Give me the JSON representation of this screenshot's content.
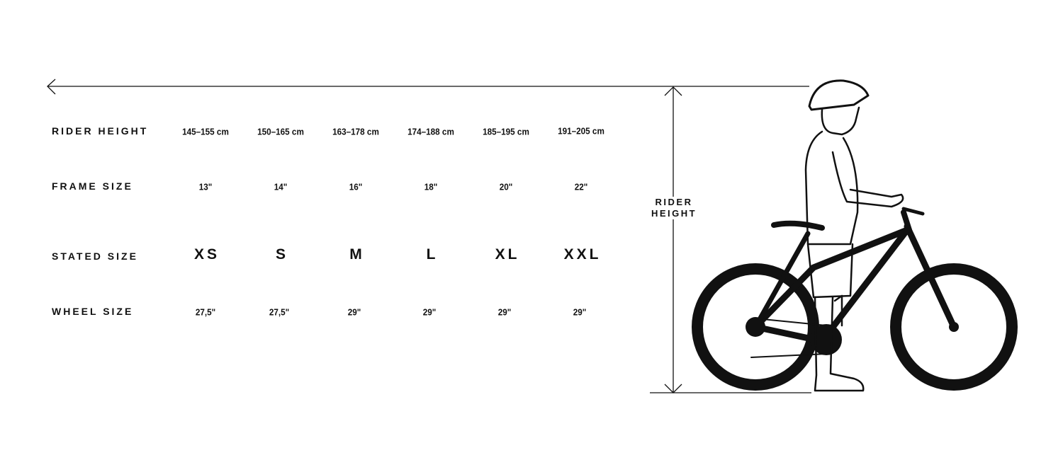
{
  "rows": [
    {
      "label": "RIDER HEIGHT",
      "values": [
        "145–155 cm",
        "150–165 cm",
        "163–178 cm",
        "174–188 cm",
        "185–195 cm",
        "191–205 cm"
      ]
    },
    {
      "label": "FRAME SIZE",
      "values": [
        "13\"",
        "14\"",
        "16\"",
        "18\"",
        "20\"",
        "22\""
      ]
    },
    {
      "label": "STATED SIZE",
      "values": [
        "XS",
        "S",
        "M",
        "L",
        "XL",
        "XXL"
      ]
    },
    {
      "label": "WHEEL SIZE",
      "values": [
        "27,5\"",
        "27,5\"",
        "29\"",
        "29\"",
        "29\"",
        "29\""
      ]
    }
  ],
  "illustration": {
    "label_line1": "RIDER",
    "label_line2": "HEIGHT",
    "subject": "rider-with-bike-icon"
  },
  "colors": {
    "ink": "#111111",
    "background": "#ffffff"
  }
}
